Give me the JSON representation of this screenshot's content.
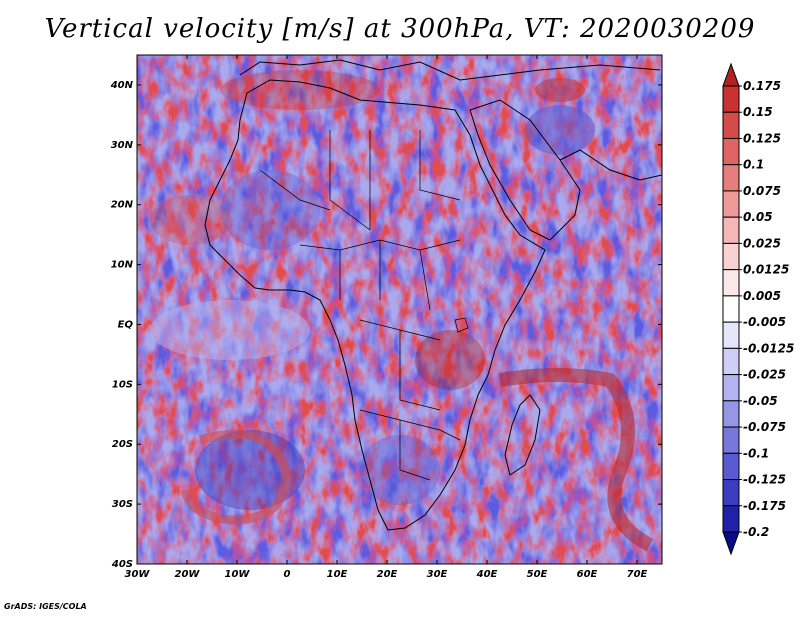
{
  "title": "Vertical velocity [m/s] at 300hPa, VT: 2020030209",
  "credit": "GrADS: IGES/COLA",
  "map": {
    "lat_labels": [
      "40N",
      "30N",
      "20N",
      "10N",
      "EQ",
      "10S",
      "20S",
      "30S",
      "40S"
    ],
    "lon_labels": [
      "30W",
      "20W",
      "10W",
      "0",
      "10E",
      "20E",
      "30E",
      "40E",
      "50E",
      "60E",
      "70E"
    ],
    "lat_range": [
      -40,
      45
    ],
    "lon_range": [
      -30,
      75
    ]
  },
  "colorbar": {
    "levels": [
      "0.175",
      "0.15",
      "0.125",
      "0.1",
      "0.075",
      "0.05",
      "0.025",
      "0.0125",
      "0.005",
      "-0.005",
      "-0.0125",
      "-0.025",
      "-0.05",
      "-0.075",
      "-0.1",
      "-0.125",
      "-0.175",
      "-0.2"
    ],
    "colors": [
      "#b22222",
      "#c83232",
      "#d44b4b",
      "#e06464",
      "#e87d7d",
      "#ef9999",
      "#f4b6b6",
      "#f8d2d2",
      "#fbe9e9",
      "#ffffff",
      "#e6e6fa",
      "#cfcff5",
      "#b3b3ef",
      "#9696e6",
      "#7878dc",
      "#5a5ad2",
      "#3c3cc0",
      "#2020a8",
      "#0a0a8c"
    ]
  },
  "colors": {
    "positive": "#c83232",
    "negative": "#3c3cc0",
    "coast": "#000000"
  }
}
